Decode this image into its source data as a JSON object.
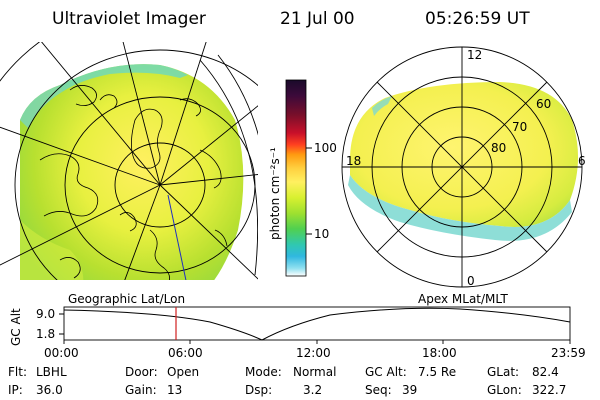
{
  "header": {
    "instrument": "Ultraviolet Imager",
    "date": "21 Jul 00",
    "time": "05:26:59 UT"
  },
  "left_panel": {
    "caption": "Geographic Lat/Lon"
  },
  "right_panel": {
    "caption": "Apex MLat/MLT",
    "mlt_labels": [
      "12",
      "18",
      "6",
      "0"
    ],
    "lat_labels": [
      "60",
      "70",
      "80"
    ]
  },
  "colorbar": {
    "unit_label": "photon cm⁻²s⁻¹",
    "ticks": [
      "100",
      "10"
    ],
    "colors": [
      "#1a0a2a",
      "#3c0a3a",
      "#7a0f2a",
      "#c8102a",
      "#ff4020",
      "#ff9a10",
      "#ffd040",
      "#fff060",
      "#d8f030",
      "#9ee030",
      "#50d050",
      "#30c8b0",
      "#30b8e0",
      "#90e0f0",
      "#ffffff"
    ]
  },
  "altitude_plot": {
    "ylabel": "GC Alt",
    "ytick_top": "9.0",
    "ytick_bottom": "1.8",
    "xticks": [
      "00:00",
      "06:00",
      "12:00",
      "18:00",
      "23:59"
    ],
    "current_time_marker_color": "#d02020"
  },
  "status": {
    "flt_label": "Flt:",
    "flt_value": "LBHL",
    "ip_label": "IP:",
    "ip_value": "36.0",
    "door_label": "Door:",
    "door_value": "Open",
    "gain_label": "Gain:",
    "gain_value": "13",
    "mode_label": "Mode:",
    "mode_value": "Normal",
    "dsp_label": "Dsp:",
    "dsp_value": "3.2",
    "gcalt_label": "GC Alt:",
    "gcalt_value": "7.5 Re",
    "seq_label": "Seq:",
    "seq_value": "39",
    "glat_label": "GLat:",
    "glat_value": "82.4",
    "glon_label": "GLon:",
    "glon_value": "322.7"
  }
}
